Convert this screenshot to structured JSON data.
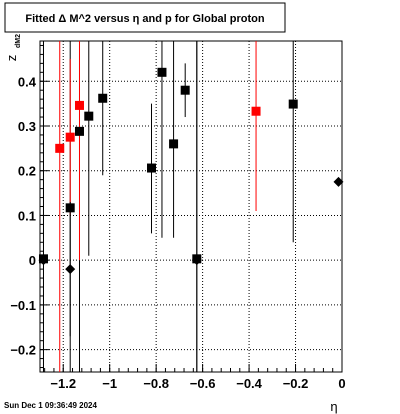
{
  "chart_data": {
    "type": "scatter",
    "title": "Fitted Δ M^2 versus η and p for Global proton",
    "xlabel": "η",
    "ylabel": "z",
    "ylabel_sub": "dM2",
    "xlim": [
      -1.3,
      0.0
    ],
    "ylim": [
      -0.25,
      0.49
    ],
    "grid": true,
    "x_ticks": [
      -1.2,
      -1.0,
      -0.8,
      -0.6,
      -0.4,
      -0.2,
      0.0
    ],
    "x_tick_labels": [
      "−1.2",
      "−1",
      "−0.8",
      "−0.6",
      "−0.4",
      "−0.2",
      "0"
    ],
    "y_ticks": [
      -0.2,
      -0.1,
      0.0,
      0.1,
      0.2,
      0.3,
      0.4
    ],
    "y_tick_labels": [
      "−0.2",
      "−0.1",
      "0",
      "0.1",
      "0.2",
      "0.3",
      "0.4"
    ],
    "series": [
      {
        "marker": "square",
        "color": "#000000",
        "points": [
          {
            "x": -1.285,
            "y": 0.003,
            "ylo": -0.25,
            "yhi": 0.49
          },
          {
            "x": -1.17,
            "y": 0.117,
            "ylo": -0.25,
            "yhi": 0.49
          },
          {
            "x": -1.13,
            "y": 0.288,
            "ylo": -0.25,
            "yhi": 0.49
          },
          {
            "x": -1.09,
            "y": 0.322,
            "ylo": 0.01,
            "yhi": 0.49
          },
          {
            "x": -1.03,
            "y": 0.362,
            "ylo": 0.19,
            "yhi": 0.49
          },
          {
            "x": -0.82,
            "y": 0.206,
            "ylo": 0.06,
            "yhi": 0.35
          },
          {
            "x": -0.775,
            "y": 0.42,
            "ylo": 0.05,
            "yhi": 0.49
          },
          {
            "x": -0.725,
            "y": 0.26,
            "ylo": 0.05,
            "yhi": 0.49
          },
          {
            "x": -0.675,
            "y": 0.38,
            "ylo": 0.32,
            "yhi": 0.44
          },
          {
            "x": -0.625,
            "y": 0.003,
            "ylo": -0.25,
            "yhi": 0.49
          },
          {
            "x": -0.21,
            "y": 0.349,
            "ylo": 0.04,
            "yhi": 0.49
          }
        ]
      },
      {
        "marker": "square",
        "color": "#ff0000",
        "points": [
          {
            "x": -1.215,
            "y": 0.25,
            "ylo": -0.25,
            "yhi": 0.49
          },
          {
            "x": -1.17,
            "y": 0.275,
            "ylo": 0.1,
            "yhi": 0.45
          },
          {
            "x": -1.13,
            "y": 0.346,
            "ylo": 0.0,
            "yhi": 0.49
          },
          {
            "x": -0.37,
            "y": 0.333,
            "ylo": 0.11,
            "yhi": 0.49
          }
        ]
      },
      {
        "marker": "diamond",
        "color": "#000000",
        "points": [
          {
            "x": -1.285,
            "y": 0.0,
            "ylo": -0.25,
            "yhi": 0.49
          },
          {
            "x": -1.17,
            "y": -0.02,
            "ylo": -0.17,
            "yhi": 0.13
          },
          {
            "x": -0.625,
            "y": 0.0,
            "ylo": -0.25,
            "yhi": 0.49
          },
          {
            "x": -0.015,
            "y": 0.175,
            "ylo": 0.175,
            "yhi": 0.175
          }
        ]
      }
    ]
  },
  "footer": {
    "timestamp": "Sun Dec  1 09:36:49 2024"
  }
}
